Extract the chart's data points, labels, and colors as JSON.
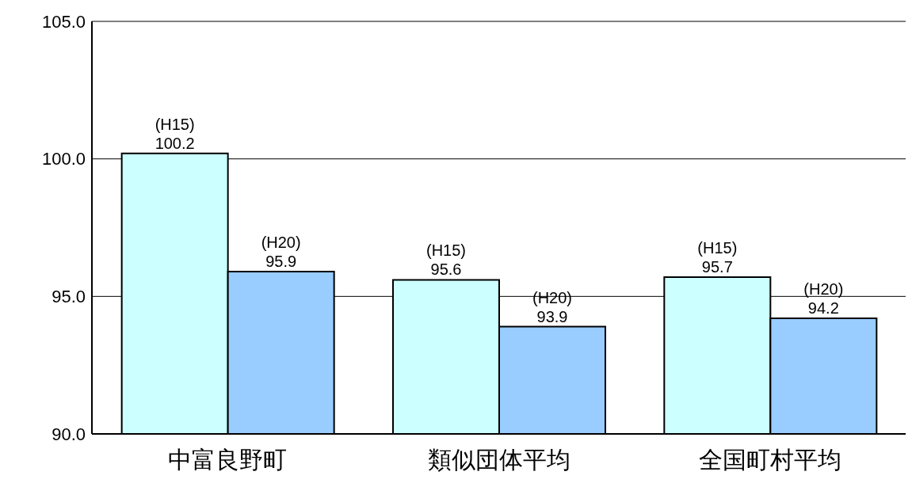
{
  "chart_data": {
    "type": "bar",
    "categories": [
      "中富良野町",
      "類似団体平均",
      "全国町村平均"
    ],
    "series": [
      {
        "name": "(H15)",
        "color": "#ccffff",
        "values": [
          100.2,
          95.6,
          95.7
        ]
      },
      {
        "name": "(H20)",
        "color": "#99ccff",
        "values": [
          95.9,
          93.9,
          94.2
        ]
      }
    ],
    "ylim": [
      90,
      105
    ],
    "yticks": [
      {
        "value": 90,
        "label": "90.0"
      },
      {
        "value": 95,
        "label": "95.0"
      },
      {
        "value": 100,
        "label": "100.0"
      },
      {
        "value": 105,
        "label": "105.0"
      }
    ],
    "grid": "y",
    "data_labels": true
  }
}
